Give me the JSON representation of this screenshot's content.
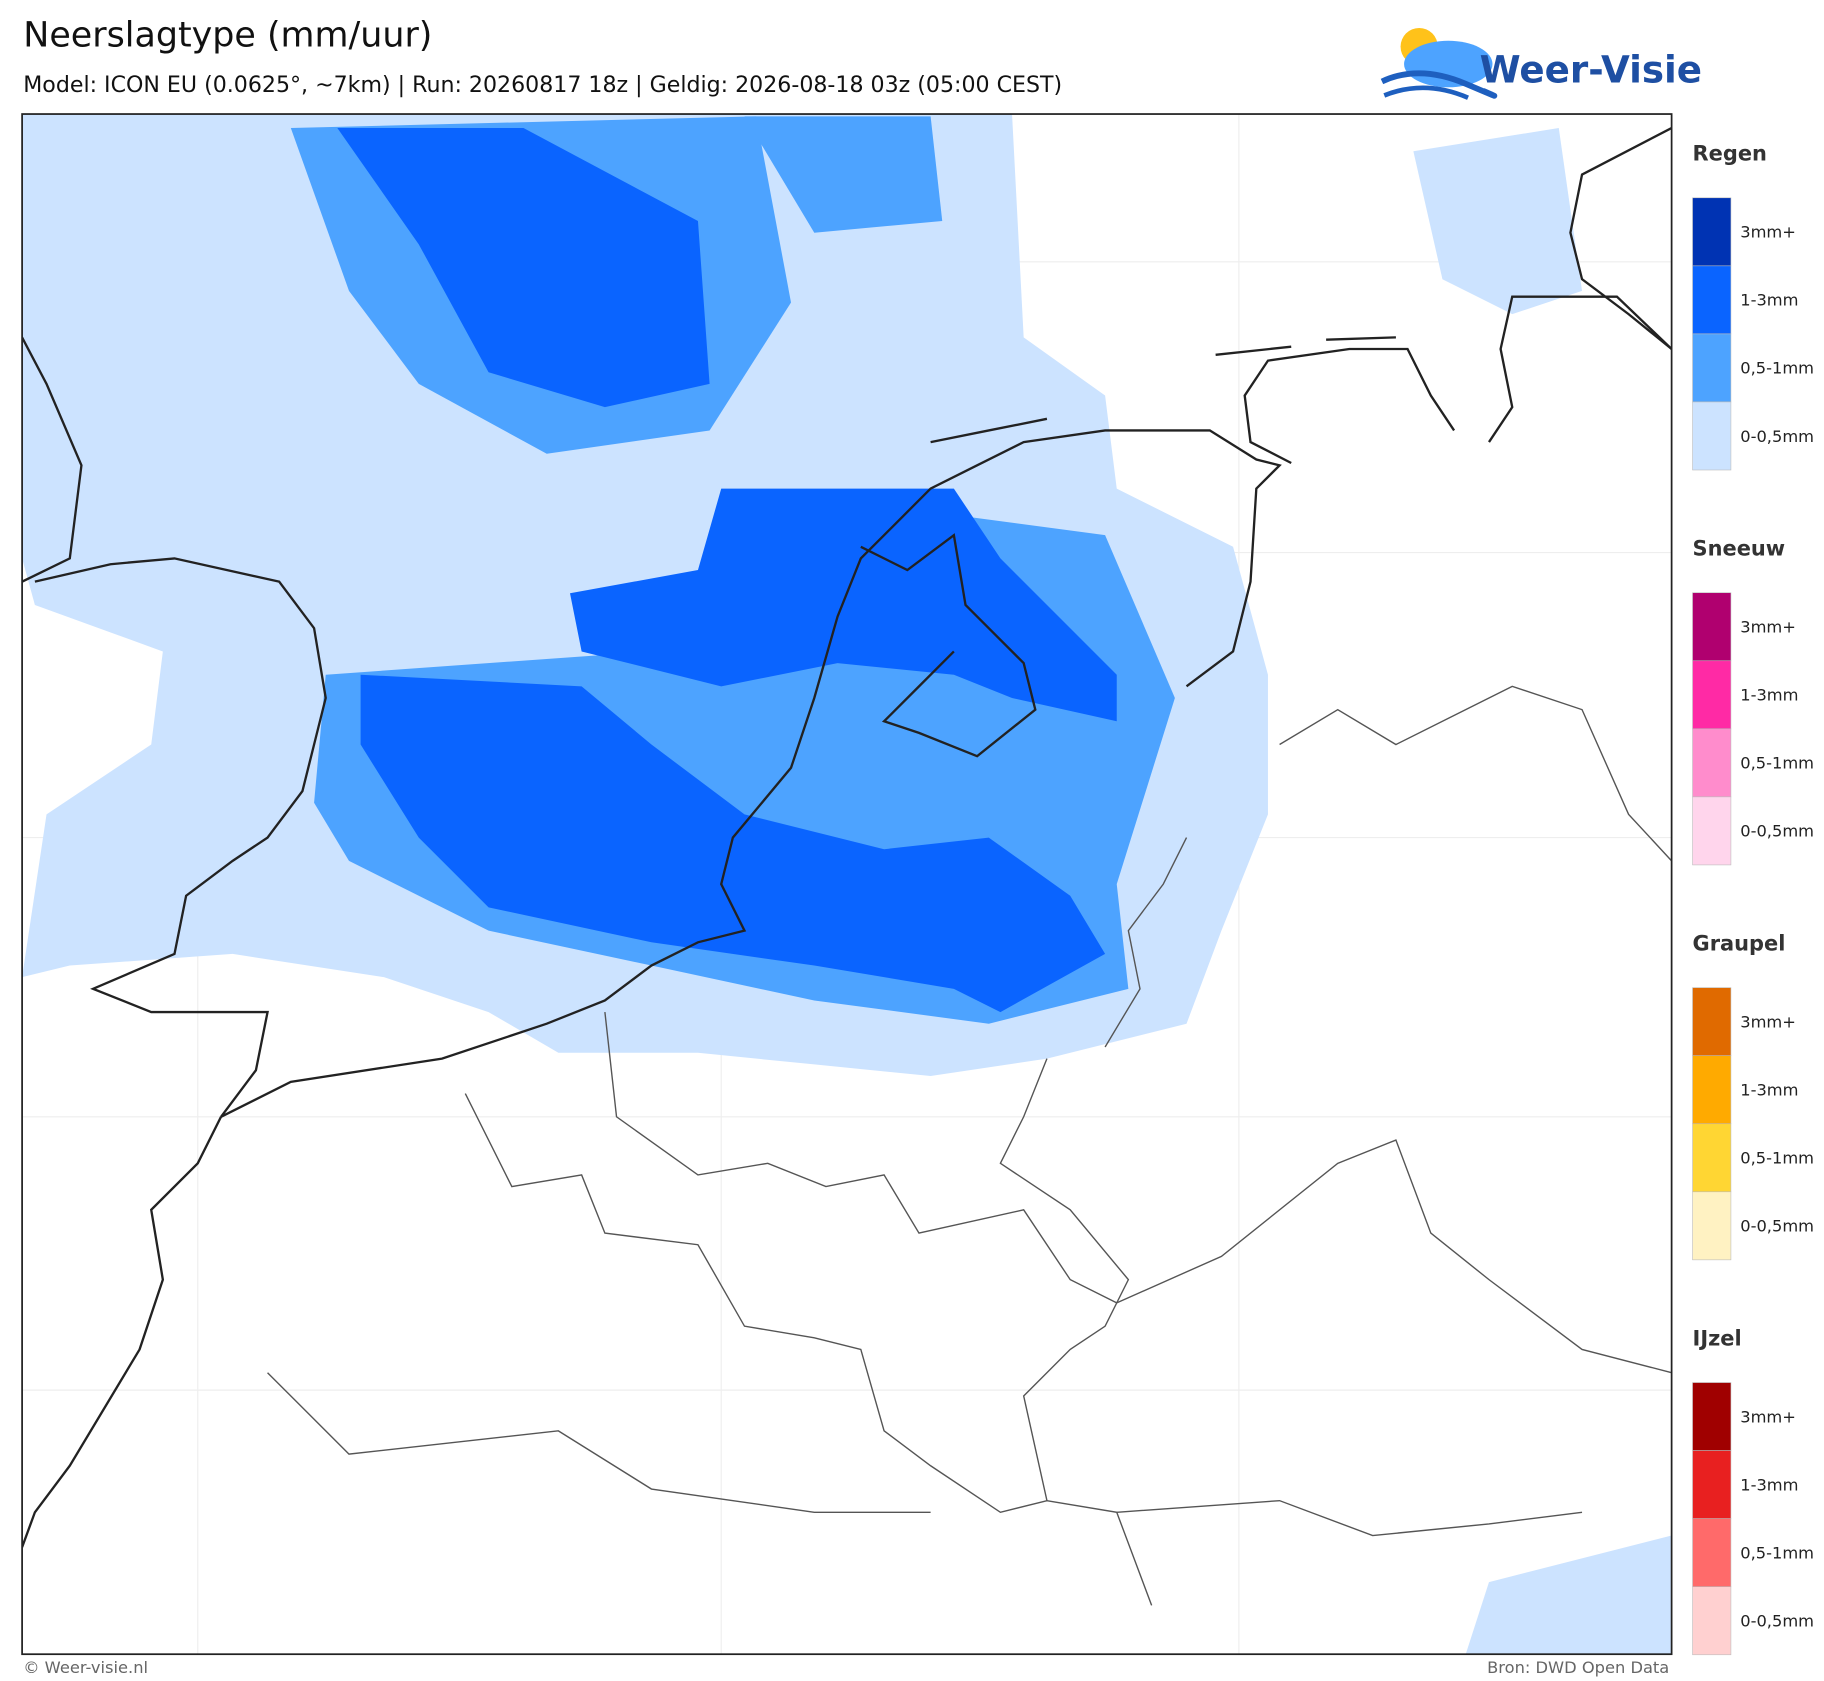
{
  "header": {
    "title": "Neerslagtype (mm/uur)",
    "subtitle": "Model: ICON EU (0.0625°, ~7km)  |  Run: 20260817 18z  |  Geldig: 2026-08-18 03z (05:00 CEST)"
  },
  "logo": {
    "text": "Weer-Visie"
  },
  "legend": {
    "groups": [
      {
        "title": "Regen",
        "items": [
          {
            "label": "3mm+",
            "color": "#0033b3"
          },
          {
            "label": "1-3mm",
            "color": "#0a64ff"
          },
          {
            "label": "0,5-1mm",
            "color": "#4da3ff"
          },
          {
            "label": "0-0,5mm",
            "color": "#cce3ff"
          }
        ]
      },
      {
        "title": "Sneeuw",
        "items": [
          {
            "label": "3mm+",
            "color": "#b0006f"
          },
          {
            "label": "1-3mm",
            "color": "#ff2aa5"
          },
          {
            "label": "0,5-1mm",
            "color": "#ff8ccc"
          },
          {
            "label": "0-0,5mm",
            "color": "#ffd5ec"
          }
        ]
      },
      {
        "title": "Graupel",
        "items": [
          {
            "label": "3mm+",
            "color": "#e06a00"
          },
          {
            "label": "1-3mm",
            "color": "#ffaa00"
          },
          {
            "label": "0,5-1mm",
            "color": "#ffd633"
          },
          {
            "label": "0-0,5mm",
            "color": "#fff2c2"
          }
        ]
      },
      {
        "title": "IJzel",
        "items": [
          {
            "label": "3mm+",
            "color": "#a00000"
          },
          {
            "label": "1-3mm",
            "color": "#e82020"
          },
          {
            "label": "0,5-1mm",
            "color": "#ff6a6a"
          },
          {
            "label": "0-0,5mm",
            "color": "#ffd0d0"
          }
        ]
      }
    ]
  },
  "footer": {
    "left": "© Weer-visie.nl",
    "right": "Bron: DWD Open Data"
  }
}
